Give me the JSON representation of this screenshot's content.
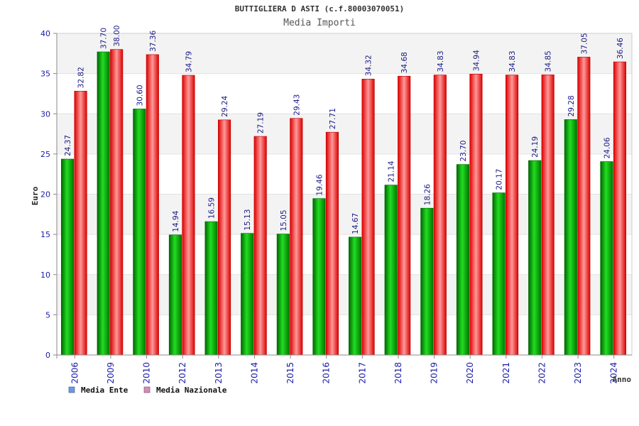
{
  "chart_data": {
    "type": "bar",
    "title": "BUTTIGLIERA D ASTI (c.f.80003070051)",
    "subtitle": "Media Importi",
    "ylabel": "Euro",
    "xlabel": "Anno",
    "ylim": [
      0,
      40
    ],
    "yticks": [
      0,
      5,
      10,
      15,
      20,
      25,
      30,
      35,
      40
    ],
    "grid": "horizontal",
    "legend_position": "bottom-left",
    "categories": [
      "2006",
      "2009",
      "2010",
      "2012",
      "2013",
      "2014",
      "2015",
      "2016",
      "2017",
      "2018",
      "2019",
      "2020",
      "2021",
      "2022",
      "2023",
      "2024"
    ],
    "series": [
      {
        "name": "Media Ente",
        "values": [
          24.37,
          37.7,
          30.6,
          14.94,
          16.59,
          15.13,
          15.05,
          19.46,
          14.67,
          21.14,
          18.26,
          23.7,
          20.17,
          24.19,
          29.28,
          24.06
        ],
        "labels": [
          "24.37",
          "37.70",
          "30.60",
          "14.94",
          "16.59",
          "15.13",
          "15.05",
          "19.46",
          "14.67",
          "21.14",
          "18.26",
          "23.70",
          "20.17",
          "24.19",
          "29.28",
          "24.06"
        ],
        "color": "#00c000",
        "legend_color": "#6699ee"
      },
      {
        "name": "Media Nazionale",
        "values": [
          32.82,
          38.0,
          37.36,
          34.79,
          29.24,
          27.19,
          29.43,
          27.71,
          34.32,
          34.68,
          34.83,
          34.94,
          34.83,
          34.85,
          37.05,
          36.46
        ],
        "labels": [
          "32.82",
          "38.00",
          "37.36",
          "34.79",
          "29.24",
          "27.19",
          "29.43",
          "27.71",
          "34.32",
          "34.68",
          "34.83",
          "34.94",
          "34.83",
          "34.85",
          "37.05",
          "36.46"
        ],
        "color": "#ee1111",
        "legend_color": "#dd88bb"
      }
    ]
  }
}
